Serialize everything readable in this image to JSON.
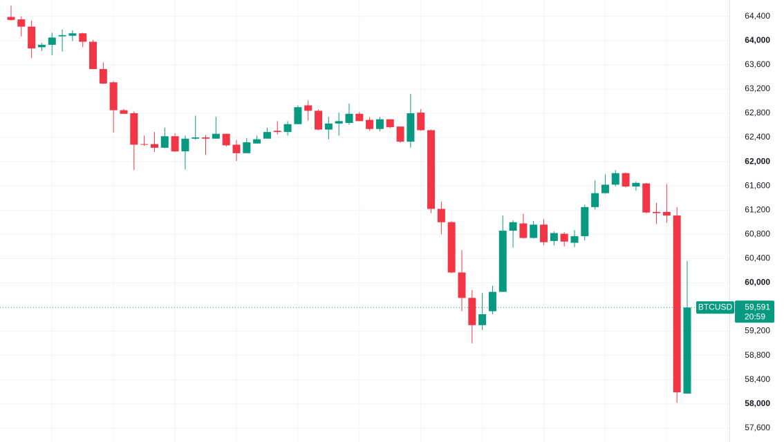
{
  "chart_data": {
    "type": "candlestick",
    "symbol": "BTCUSD",
    "last_price": {
      "value": 59591,
      "label": "59,591"
    },
    "countdown": "20:59",
    "up_color": "#089981",
    "down_color": "#f23645",
    "ylim": [
      57370,
      64670
    ],
    "yticks": [
      {
        "value": 57600,
        "label": "57,600"
      },
      {
        "value": 58000,
        "label": "58,000"
      },
      {
        "value": 58400,
        "label": "58,400"
      },
      {
        "value": 58800,
        "label": "58,800"
      },
      {
        "value": 59200,
        "label": "59,200"
      },
      {
        "value": 60000,
        "label": "60,000"
      },
      {
        "value": 60400,
        "label": "60,400"
      },
      {
        "value": 60800,
        "label": "60,800"
      },
      {
        "value": 61200,
        "label": "61,200"
      },
      {
        "value": 61600,
        "label": "61,600"
      },
      {
        "value": 62000,
        "label": "62,000"
      },
      {
        "value": 62400,
        "label": "62,400"
      },
      {
        "value": 62800,
        "label": "62,800"
      },
      {
        "value": 63200,
        "label": "63,200"
      },
      {
        "value": 63600,
        "label": "63,600"
      },
      {
        "value": 64000,
        "label": "64,000"
      },
      {
        "value": 64400,
        "label": "64,400"
      }
    ],
    "grid": true,
    "open": [
      64390,
      64350,
      64230,
      63890,
      63930,
      64070,
      64080,
      64120,
      63980,
      63530,
      63310,
      62850,
      62800,
      62290,
      62290,
      62230,
      62420,
      62170,
      62380,
      62400,
      62380,
      62460,
      62280,
      62140,
      62300,
      62380,
      62510,
      62490,
      62620,
      62930,
      62840,
      62530,
      62630,
      62640,
      62790,
      62690,
      62540,
      62700,
      62580,
      62330,
      62810,
      62520,
      61220,
      61000,
      60170,
      59750,
      59300,
      59530,
      59850,
      60860,
      60980,
      60740,
      60960,
      60690,
      60810,
      60660,
      60770,
      61250,
      61480,
      61620,
      61810,
      61590,
      61640,
      61170,
      61170,
      61110,
      58170
    ],
    "high": [
      64580,
      64400,
      64330,
      63960,
      64130,
      64180,
      64170,
      64130,
      64010,
      63640,
      63330,
      62870,
      62830,
      62430,
      62490,
      62560,
      62470,
      62430,
      62760,
      62440,
      62740,
      62460,
      62360,
      62390,
      62430,
      62560,
      62670,
      62670,
      62930,
      63010,
      62860,
      62740,
      62810,
      62960,
      62820,
      62740,
      62740,
      62700,
      62580,
      63120,
      62870,
      62530,
      61340,
      61020,
      60540,
      59880,
      59830,
      59950,
      61110,
      61030,
      61140,
      61020,
      61050,
      60850,
      60840,
      60870,
      61290,
      61690,
      61790,
      61860,
      61820,
      61670,
      61650,
      61320,
      61630,
      61250,
      60360
    ],
    "low": [
      64330,
      64070,
      63710,
      63830,
      63760,
      63820,
      63990,
      63890,
      63530,
      63280,
      62480,
      62790,
      61860,
      62260,
      62160,
      62220,
      62160,
      61870,
      62360,
      62110,
      62380,
      62250,
      62010,
      62140,
      62300,
      62380,
      62450,
      62430,
      62620,
      62680,
      62520,
      62370,
      62430,
      62610,
      62670,
      62510,
      62500,
      62550,
      62310,
      62230,
      62510,
      61150,
      60800,
      60160,
      59530,
      59000,
      59220,
      59480,
      59850,
      60580,
      60730,
      60730,
      60620,
      60620,
      60600,
      60590,
      60700,
      61210,
      61470,
      61590,
      61570,
      61520,
      61150,
      60970,
      60990,
      58020,
      58170
    ],
    "close": [
      64340,
      64230,
      63870,
      63930,
      64050,
      64090,
      64120,
      63980,
      63530,
      63290,
      62850,
      62790,
      62280,
      62280,
      62230,
      62420,
      62170,
      62380,
      62400,
      62380,
      62460,
      62270,
      62140,
      62320,
      62370,
      62490,
      62490,
      62620,
      62900,
      62840,
      62530,
      62630,
      62670,
      62790,
      62670,
      62540,
      62700,
      62570,
      62330,
      62800,
      62520,
      61220,
      61000,
      60170,
      59750,
      59300,
      59480,
      59850,
      60860,
      61000,
      60740,
      60960,
      60670,
      60820,
      60680,
      60770,
      61250,
      61480,
      61620,
      61810,
      61590,
      61650,
      61160,
      61150,
      61110,
      58190,
      59591
    ]
  }
}
